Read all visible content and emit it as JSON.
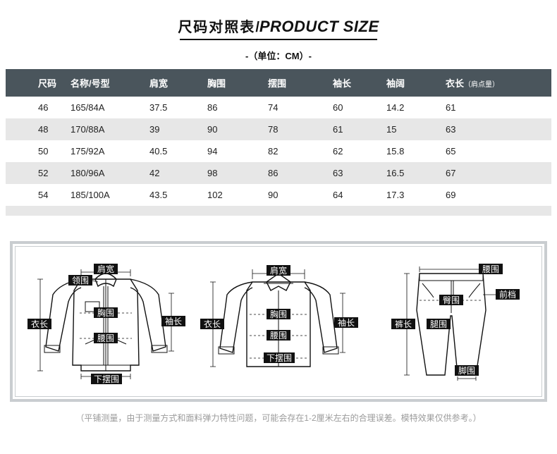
{
  "title": {
    "cn": "尺码对照表",
    "slash": "/",
    "en": "PRODUCT SIZE"
  },
  "unit": "-（单位：CM）-",
  "columns": [
    {
      "label": "尺码"
    },
    {
      "label": "名称/号型"
    },
    {
      "label": "肩宽"
    },
    {
      "label": "胸围"
    },
    {
      "label": "摆围"
    },
    {
      "label": "袖长"
    },
    {
      "label": "袖阔"
    },
    {
      "label": "衣长",
      "sub": "（肩点量）"
    }
  ],
  "rows": [
    [
      "46",
      "165/84A",
      "37.5",
      "86",
      "74",
      "60",
      "14.2",
      "61"
    ],
    [
      "48",
      "170/88A",
      "39",
      "90",
      "78",
      "61",
      "15",
      "63"
    ],
    [
      "50",
      "175/92A",
      "40.5",
      "94",
      "82",
      "62",
      "15.8",
      "65"
    ],
    [
      "52",
      "180/96A",
      "42",
      "98",
      "86",
      "63",
      "16.5",
      "67"
    ],
    [
      "54",
      "185/100A",
      "43.5",
      "102",
      "90",
      "64",
      "17.3",
      "69"
    ]
  ],
  "note": "（平铺测量，由于测量方式和面料弹力特性问题，可能会存在1-2厘米左右的合理误差。模特效果仅供参考。）",
  "diagram_labels": {
    "jianKuan": "肩宽",
    "lingWei": "领围",
    "xiongWei": "胸围",
    "yaoWei": "腰围",
    "yiChang": "衣长",
    "xiuChang": "袖长",
    "xiaBaiWei": "下摆围",
    "tunWei": "臀围",
    "kuChang": "裤长",
    "tuiWei": "腿围",
    "jiaoWei": "脚围",
    "qianDang": "前档"
  },
  "colors": {
    "header_bg": "#4a555c",
    "row_alt": "#e7e7e7",
    "border": "#c9cdd0",
    "text": "#222222",
    "note": "#9b9b9b"
  }
}
